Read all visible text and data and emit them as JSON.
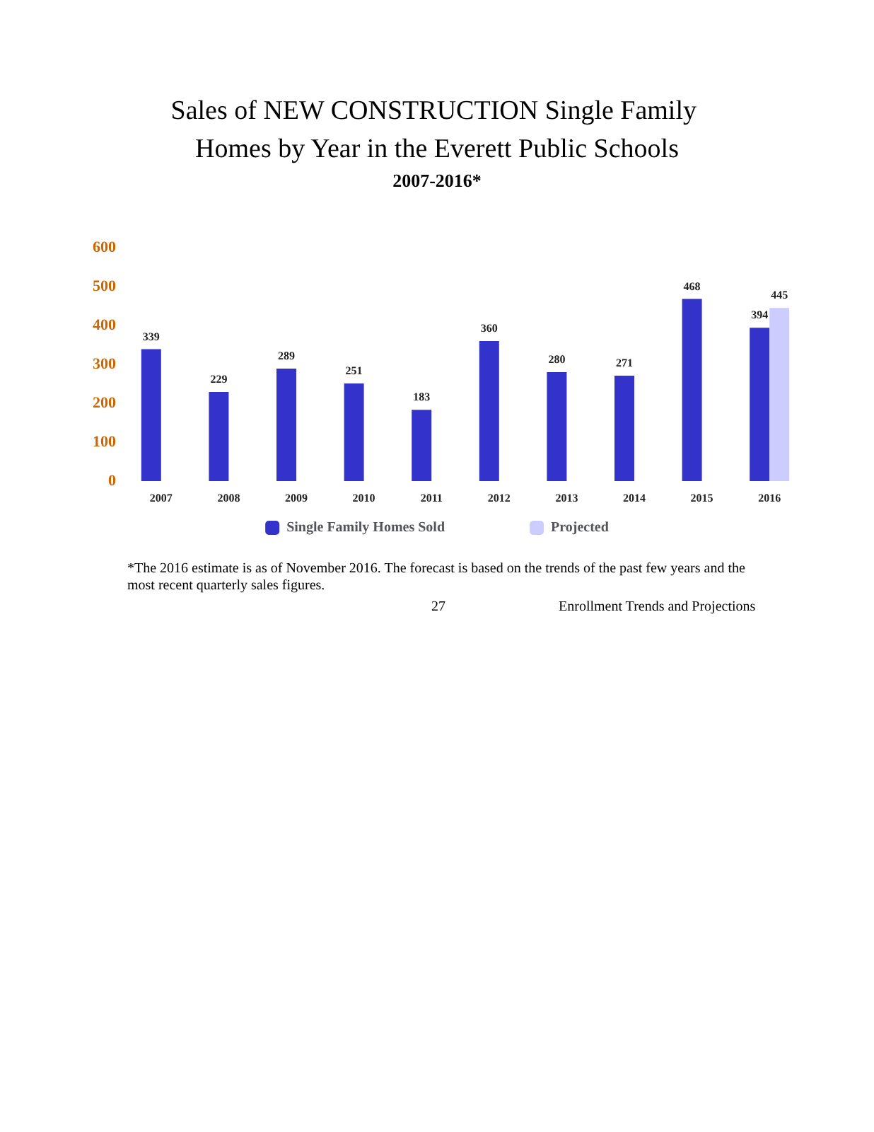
{
  "chart_data": [
    {
      "type": "bar",
      "title": "Sales of NEW CONSTRUCTION Single Family Homes by Year in the Everett Public Schools",
      "subtitle": "2007-2016*",
      "categories": [
        "2007",
        "2008",
        "2009",
        "2010",
        "2011",
        "2012",
        "2013",
        "2014",
        "2015",
        "2016"
      ],
      "series": [
        {
          "name": "Single Family Homes Sold",
          "color": "#3333cc",
          "values": [
            339,
            229,
            289,
            251,
            183,
            360,
            280,
            271,
            468,
            394
          ]
        },
        {
          "name": "Projected",
          "color": "#ccccff",
          "values": [
            null,
            null,
            null,
            null,
            null,
            null,
            null,
            null,
            null,
            445
          ]
        }
      ],
      "ylim": [
        0,
        600
      ],
      "yticks": [
        0,
        100,
        200,
        300,
        400,
        500,
        600
      ],
      "grid": false,
      "legend": "bottom",
      "data_labels": true,
      "annotations": [
        "*The 2016 estimate is as of November 2016. The forecast is based on the trends of the past few years and the most recent quarterly sales figures."
      ]
    },
    {
      "type": "other",
      "title": "Enrollment Trends and Projections",
      "annotations": [
        "27"
      ]
    }
  ]
}
